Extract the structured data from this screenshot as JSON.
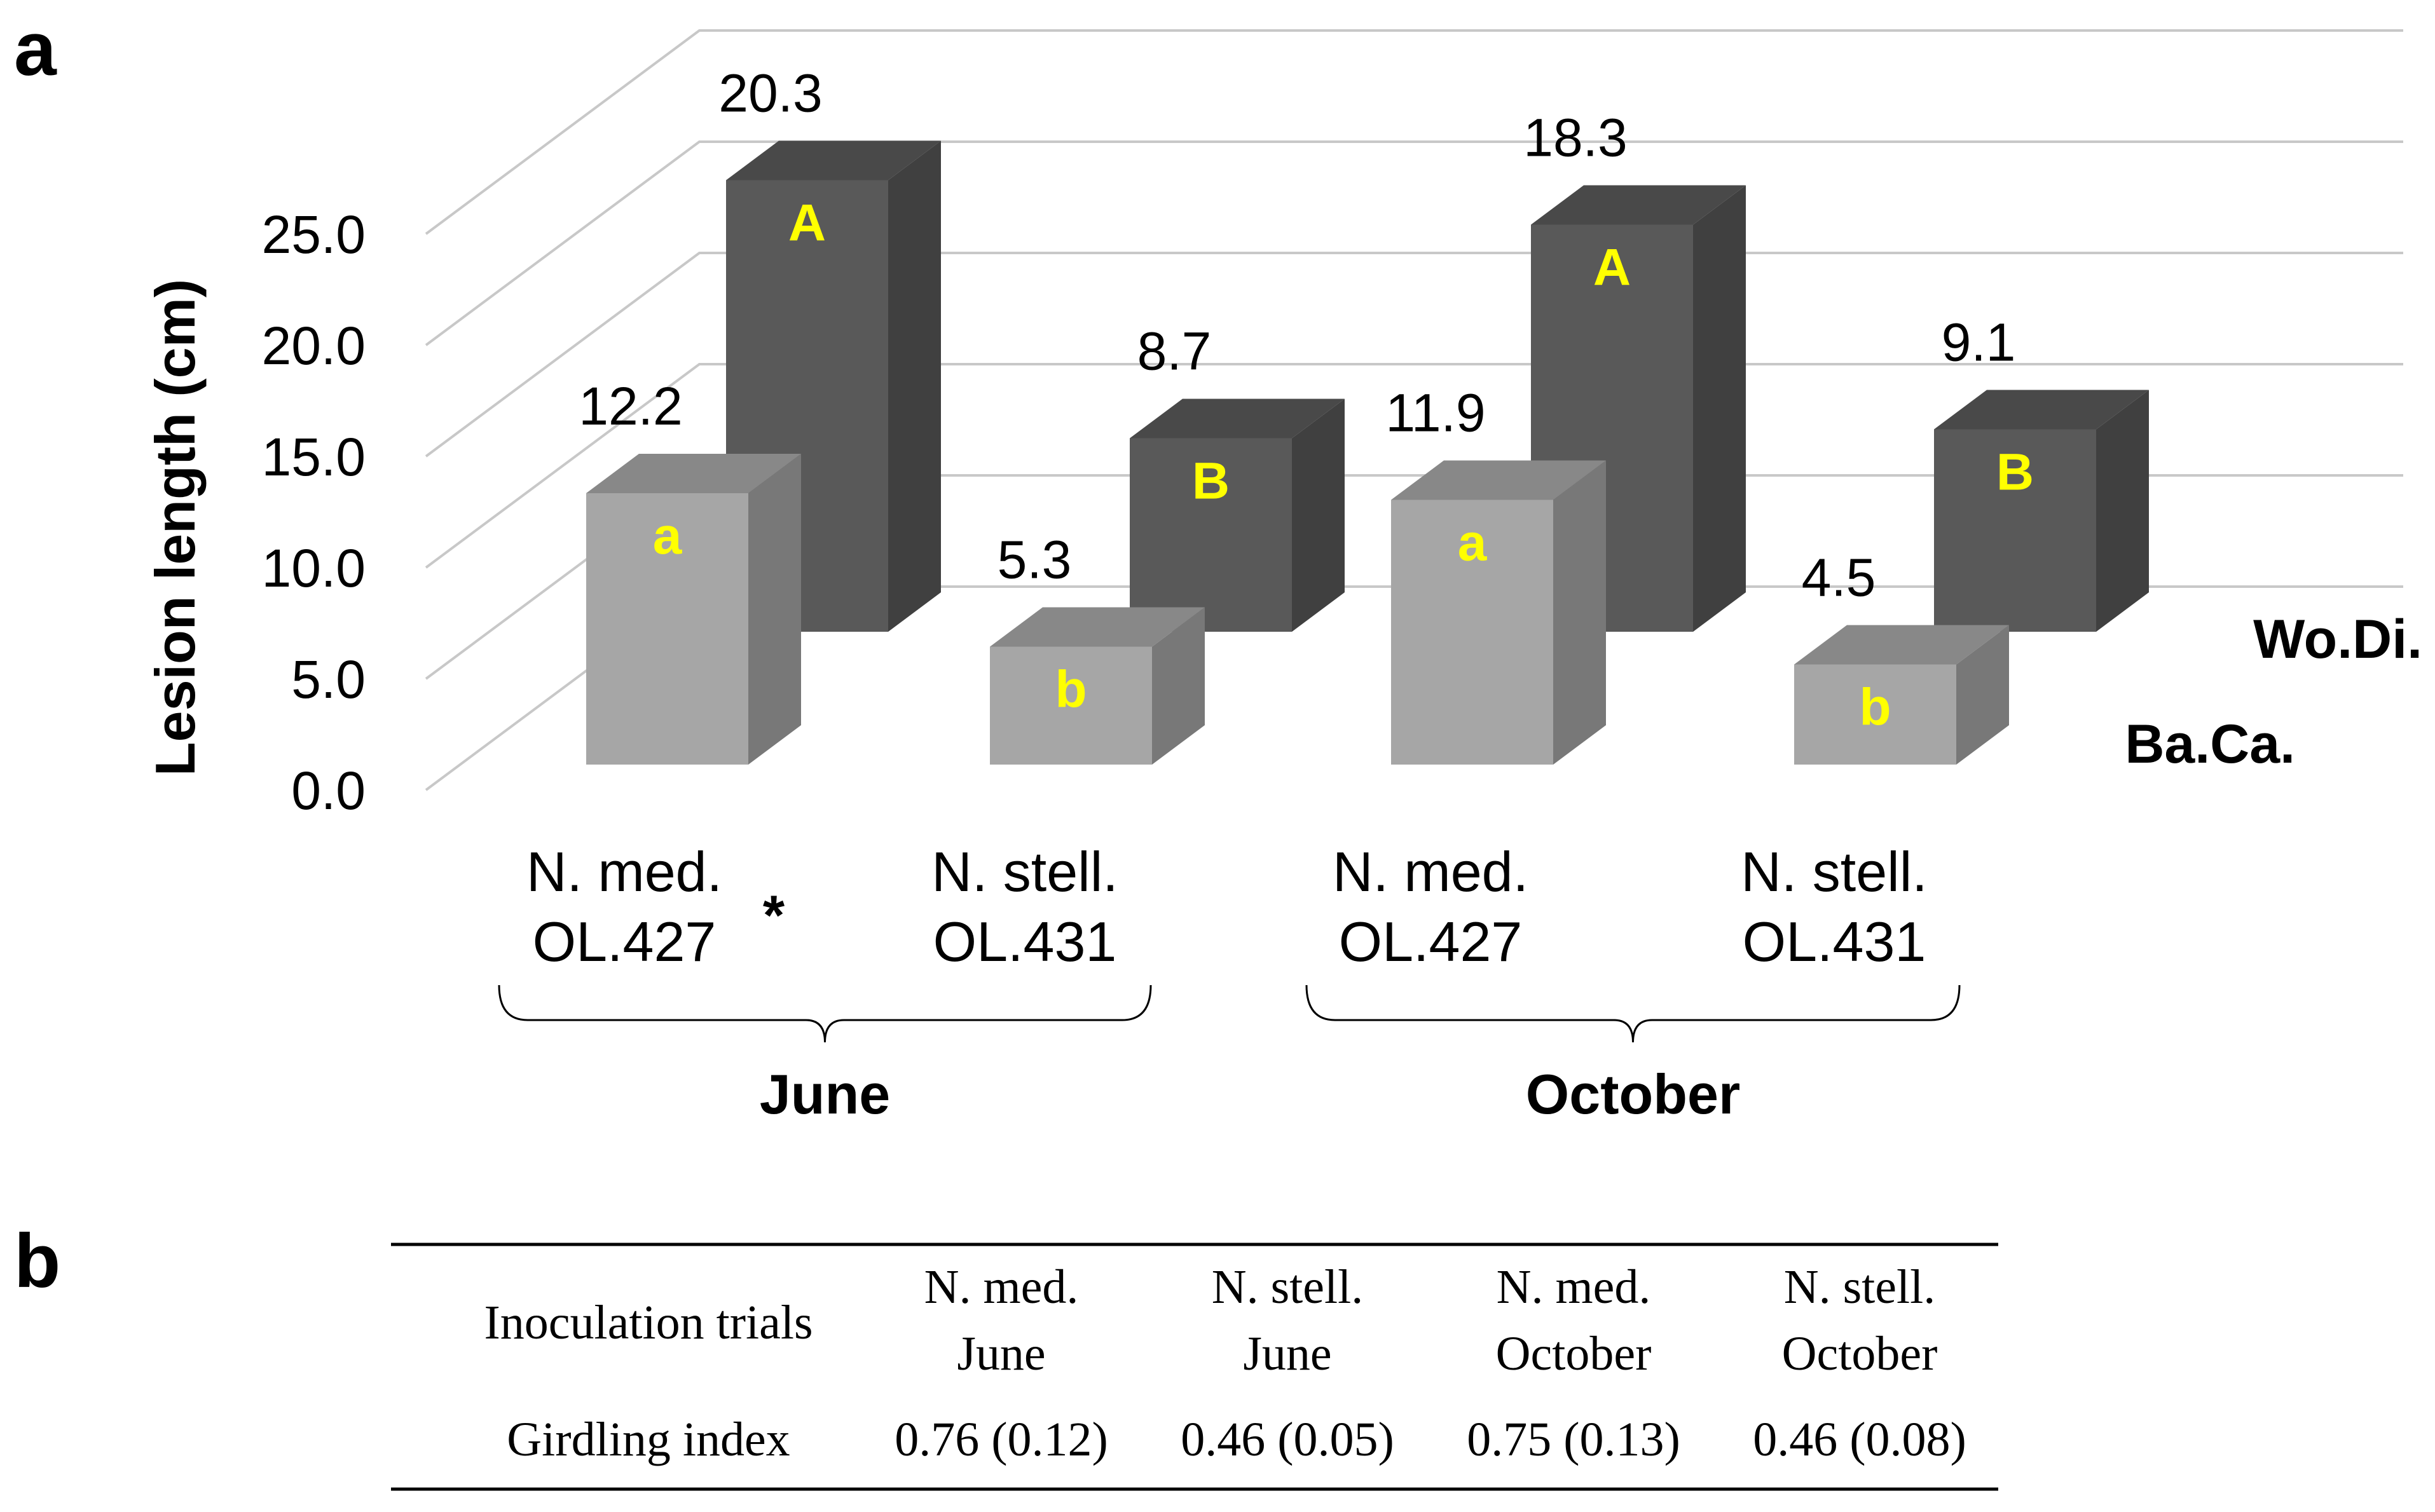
{
  "panel_labels": {
    "a": "a",
    "b": "b"
  },
  "colors": {
    "front_series": "#a6a6a6",
    "back_series": "#595959",
    "letter": "#ffff00",
    "grid": "#c8c8c8"
  },
  "chart_data": {
    "type": "bar",
    "style": "3d-clustered-columns",
    "ylabel": "Lesion length (cm)",
    "xlabel": "",
    "ylim": [
      0,
      25
    ],
    "yticks": [
      "0.0",
      "5.0",
      "10.0",
      "15.0",
      "20.0",
      "25.0"
    ],
    "grid": true,
    "categories": [
      {
        "line1": "N. med.",
        "line2": "OL.427",
        "mark": "*"
      },
      {
        "line1": "N. stell.",
        "line2": "OL.431",
        "mark": ""
      },
      {
        "line1": "N. med.",
        "line2": "OL.427",
        "mark": ""
      },
      {
        "line1": "N. stell.",
        "line2": "OL.431",
        "mark": ""
      }
    ],
    "groups": [
      "June",
      "October"
    ],
    "series": [
      {
        "name": "Ba.Ca.",
        "values": [
          12.2,
          5.3,
          11.9,
          4.5
        ],
        "labels": [
          "12.2",
          "5.3",
          "11.9",
          "4.5"
        ],
        "letters": [
          "a",
          "b",
          "a",
          "b"
        ]
      },
      {
        "name": "Wo.Di.",
        "values": [
          20.3,
          8.7,
          18.3,
          9.1
        ],
        "labels": [
          "20.3",
          "8.7",
          "18.3",
          "9.1"
        ],
        "letters": [
          "A",
          "B",
          "A",
          "B"
        ]
      }
    ]
  },
  "table": {
    "header": [
      "Inoculation trials",
      {
        "line1": "N. med.",
        "line2": "June"
      },
      {
        "line1": "N. stell.",
        "line2": "June"
      },
      {
        "line1": "N. med.",
        "line2": "October"
      },
      {
        "line1": "N. stell.",
        "line2": "October"
      }
    ],
    "row_label": "Girdling index",
    "row_values": [
      "0.76 (0.12)",
      "0.46 (0.05)",
      "0.75 (0.13)",
      "0.46 (0.08)"
    ]
  }
}
